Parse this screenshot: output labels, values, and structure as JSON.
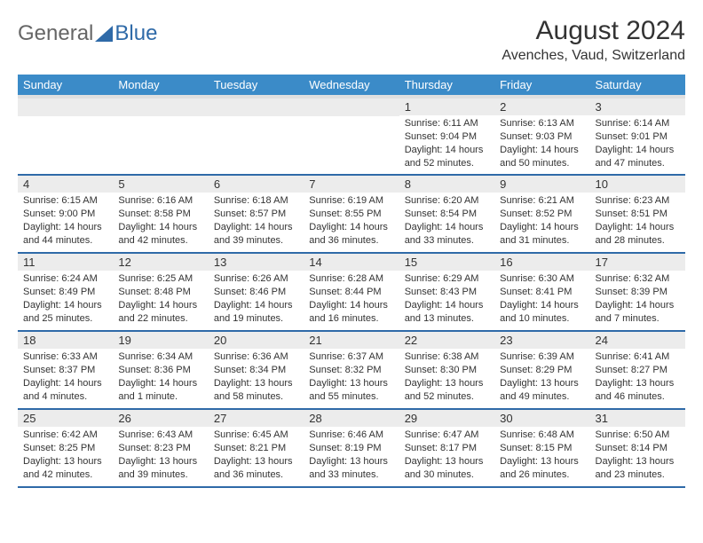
{
  "logo": {
    "text1": "General",
    "text2": "Blue"
  },
  "title": "August 2024",
  "location": "Avenches, Vaud, Switzerland",
  "colors": {
    "header_bg": "#3b8bc8",
    "header_text": "#ffffff",
    "daynum_bg": "#ececec",
    "row_border": "#2f6aa8",
    "logo_gray": "#666666",
    "logo_blue": "#2f6aa8",
    "text": "#333333",
    "page_bg": "#ffffff"
  },
  "weekdays": [
    "Sunday",
    "Monday",
    "Tuesday",
    "Wednesday",
    "Thursday",
    "Friday",
    "Saturday"
  ],
  "weeks": [
    [
      null,
      null,
      null,
      null,
      {
        "n": "1",
        "sr": "Sunrise: 6:11 AM",
        "ss": "Sunset: 9:04 PM",
        "dl": "Daylight: 14 hours and 52 minutes."
      },
      {
        "n": "2",
        "sr": "Sunrise: 6:13 AM",
        "ss": "Sunset: 9:03 PM",
        "dl": "Daylight: 14 hours and 50 minutes."
      },
      {
        "n": "3",
        "sr": "Sunrise: 6:14 AM",
        "ss": "Sunset: 9:01 PM",
        "dl": "Daylight: 14 hours and 47 minutes."
      }
    ],
    [
      {
        "n": "4",
        "sr": "Sunrise: 6:15 AM",
        "ss": "Sunset: 9:00 PM",
        "dl": "Daylight: 14 hours and 44 minutes."
      },
      {
        "n": "5",
        "sr": "Sunrise: 6:16 AM",
        "ss": "Sunset: 8:58 PM",
        "dl": "Daylight: 14 hours and 42 minutes."
      },
      {
        "n": "6",
        "sr": "Sunrise: 6:18 AM",
        "ss": "Sunset: 8:57 PM",
        "dl": "Daylight: 14 hours and 39 minutes."
      },
      {
        "n": "7",
        "sr": "Sunrise: 6:19 AM",
        "ss": "Sunset: 8:55 PM",
        "dl": "Daylight: 14 hours and 36 minutes."
      },
      {
        "n": "8",
        "sr": "Sunrise: 6:20 AM",
        "ss": "Sunset: 8:54 PM",
        "dl": "Daylight: 14 hours and 33 minutes."
      },
      {
        "n": "9",
        "sr": "Sunrise: 6:21 AM",
        "ss": "Sunset: 8:52 PM",
        "dl": "Daylight: 14 hours and 31 minutes."
      },
      {
        "n": "10",
        "sr": "Sunrise: 6:23 AM",
        "ss": "Sunset: 8:51 PM",
        "dl": "Daylight: 14 hours and 28 minutes."
      }
    ],
    [
      {
        "n": "11",
        "sr": "Sunrise: 6:24 AM",
        "ss": "Sunset: 8:49 PM",
        "dl": "Daylight: 14 hours and 25 minutes."
      },
      {
        "n": "12",
        "sr": "Sunrise: 6:25 AM",
        "ss": "Sunset: 8:48 PM",
        "dl": "Daylight: 14 hours and 22 minutes."
      },
      {
        "n": "13",
        "sr": "Sunrise: 6:26 AM",
        "ss": "Sunset: 8:46 PM",
        "dl": "Daylight: 14 hours and 19 minutes."
      },
      {
        "n": "14",
        "sr": "Sunrise: 6:28 AM",
        "ss": "Sunset: 8:44 PM",
        "dl": "Daylight: 14 hours and 16 minutes."
      },
      {
        "n": "15",
        "sr": "Sunrise: 6:29 AM",
        "ss": "Sunset: 8:43 PM",
        "dl": "Daylight: 14 hours and 13 minutes."
      },
      {
        "n": "16",
        "sr": "Sunrise: 6:30 AM",
        "ss": "Sunset: 8:41 PM",
        "dl": "Daylight: 14 hours and 10 minutes."
      },
      {
        "n": "17",
        "sr": "Sunrise: 6:32 AM",
        "ss": "Sunset: 8:39 PM",
        "dl": "Daylight: 14 hours and 7 minutes."
      }
    ],
    [
      {
        "n": "18",
        "sr": "Sunrise: 6:33 AM",
        "ss": "Sunset: 8:37 PM",
        "dl": "Daylight: 14 hours and 4 minutes."
      },
      {
        "n": "19",
        "sr": "Sunrise: 6:34 AM",
        "ss": "Sunset: 8:36 PM",
        "dl": "Daylight: 14 hours and 1 minute."
      },
      {
        "n": "20",
        "sr": "Sunrise: 6:36 AM",
        "ss": "Sunset: 8:34 PM",
        "dl": "Daylight: 13 hours and 58 minutes."
      },
      {
        "n": "21",
        "sr": "Sunrise: 6:37 AM",
        "ss": "Sunset: 8:32 PM",
        "dl": "Daylight: 13 hours and 55 minutes."
      },
      {
        "n": "22",
        "sr": "Sunrise: 6:38 AM",
        "ss": "Sunset: 8:30 PM",
        "dl": "Daylight: 13 hours and 52 minutes."
      },
      {
        "n": "23",
        "sr": "Sunrise: 6:39 AM",
        "ss": "Sunset: 8:29 PM",
        "dl": "Daylight: 13 hours and 49 minutes."
      },
      {
        "n": "24",
        "sr": "Sunrise: 6:41 AM",
        "ss": "Sunset: 8:27 PM",
        "dl": "Daylight: 13 hours and 46 minutes."
      }
    ],
    [
      {
        "n": "25",
        "sr": "Sunrise: 6:42 AM",
        "ss": "Sunset: 8:25 PM",
        "dl": "Daylight: 13 hours and 42 minutes."
      },
      {
        "n": "26",
        "sr": "Sunrise: 6:43 AM",
        "ss": "Sunset: 8:23 PM",
        "dl": "Daylight: 13 hours and 39 minutes."
      },
      {
        "n": "27",
        "sr": "Sunrise: 6:45 AM",
        "ss": "Sunset: 8:21 PM",
        "dl": "Daylight: 13 hours and 36 minutes."
      },
      {
        "n": "28",
        "sr": "Sunrise: 6:46 AM",
        "ss": "Sunset: 8:19 PM",
        "dl": "Daylight: 13 hours and 33 minutes."
      },
      {
        "n": "29",
        "sr": "Sunrise: 6:47 AM",
        "ss": "Sunset: 8:17 PM",
        "dl": "Daylight: 13 hours and 30 minutes."
      },
      {
        "n": "30",
        "sr": "Sunrise: 6:48 AM",
        "ss": "Sunset: 8:15 PM",
        "dl": "Daylight: 13 hours and 26 minutes."
      },
      {
        "n": "31",
        "sr": "Sunrise: 6:50 AM",
        "ss": "Sunset: 8:14 PM",
        "dl": "Daylight: 13 hours and 23 minutes."
      }
    ]
  ]
}
